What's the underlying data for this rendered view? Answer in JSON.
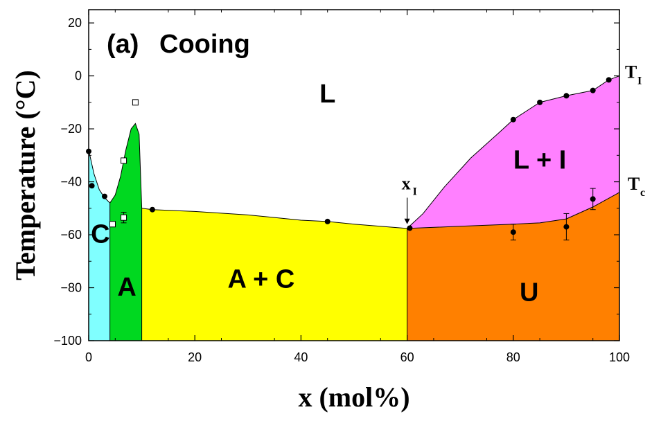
{
  "chart_data": {
    "type": "scatter",
    "panel_label": "(a)",
    "title": "Cooing",
    "title_color": "#0000e0",
    "xlabel": "x  (mol%)",
    "ylabel": "Temperature (°C)",
    "xlim": [
      0,
      100
    ],
    "ylim": [
      -100,
      25
    ],
    "x_ticks": [
      0,
      20,
      40,
      60,
      80,
      100
    ],
    "y_ticks": [
      20,
      0,
      -20,
      -40,
      -60,
      -80,
      -100
    ],
    "x_tick_labels": [
      "0",
      "20",
      "40",
      "60",
      "80",
      "100"
    ],
    "y_tick_labels": [
      "20",
      "0",
      "−20",
      "−40",
      "−60",
      "−80",
      "−100"
    ],
    "grid": false,
    "regions": [
      {
        "name": "C",
        "color": "#80ffff",
        "label_at": [
          2.2,
          -63
        ]
      },
      {
        "name": "A",
        "color": "#00d820",
        "label_at": [
          7.2,
          -83
        ]
      },
      {
        "name": "A + C",
        "color": "#ffff00",
        "label_at": [
          32.5,
          -80
        ]
      },
      {
        "name": "U",
        "color": "#ff8000",
        "label_at": [
          83,
          -85
        ]
      },
      {
        "name": "L + I",
        "color": "#ff80ff",
        "label_at": [
          85,
          -35
        ]
      },
      {
        "name": "L",
        "color": "#ffffff",
        "label_at": [
          45,
          -10
        ]
      }
    ],
    "boundaries": {
      "liquidus_C": [
        [
          0,
          -28
        ],
        [
          1,
          -37
        ],
        [
          2,
          -43
        ],
        [
          3,
          -46
        ],
        [
          4,
          -48
        ]
      ],
      "liquidus_A": [
        [
          4,
          -48
        ],
        [
          5,
          -45
        ],
        [
          6,
          -38
        ],
        [
          7,
          -28
        ],
        [
          8,
          -20
        ],
        [
          8.8,
          -18
        ],
        [
          9.5,
          -22
        ],
        [
          10,
          -50
        ]
      ],
      "eutectic_line": [
        [
          10,
          -50
        ],
        [
          12,
          -50.5
        ],
        [
          20,
          -51.2
        ],
        [
          30,
          -52.5
        ],
        [
          40,
          -54.5
        ],
        [
          45,
          -55
        ],
        [
          50,
          -56
        ],
        [
          60,
          -57.6
        ]
      ],
      "liquidus_I": [
        [
          60,
          -57.6
        ],
        [
          63,
          -52
        ],
        [
          67,
          -42
        ],
        [
          72,
          -31
        ],
        [
          77,
          -22
        ],
        [
          80,
          -16.5
        ],
        [
          85,
          -10
        ],
        [
          90,
          -7.5
        ],
        [
          95,
          -5.5
        ],
        [
          98,
          -1.5
        ],
        [
          100,
          0
        ]
      ],
      "transition_Tc": [
        [
          60,
          -57.6
        ],
        [
          70,
          -56.8
        ],
        [
          80,
          -56
        ],
        [
          85,
          -55.5
        ],
        [
          90,
          -54
        ],
        [
          95,
          -49.5
        ],
        [
          100,
          -44
        ]
      ],
      "vertical_lines": [
        4,
        10,
        60
      ]
    },
    "series": [
      {
        "marker": "filled-circle",
        "points": [
          {
            "x": 0,
            "y": -28.5
          },
          {
            "x": 0.6,
            "y": -41.5
          },
          {
            "x": 3,
            "y": -45.5
          },
          {
            "x": 12,
            "y": -50.5
          },
          {
            "x": 45,
            "y": -55
          },
          {
            "x": 60.5,
            "y": -57.5
          },
          {
            "x": 80,
            "y": -16.5
          },
          {
            "x": 85,
            "y": -10
          },
          {
            "x": 90,
            "y": -7.5
          },
          {
            "x": 95,
            "y": -5.5
          },
          {
            "x": 98,
            "y": -1.5
          },
          {
            "x": 80,
            "y": -59,
            "err": 3
          },
          {
            "x": 90,
            "y": -57,
            "err": 5
          },
          {
            "x": 95,
            "y": -46.5,
            "err": 4
          }
        ]
      },
      {
        "marker": "open-square",
        "points": [
          {
            "x": 8.8,
            "y": -10
          },
          {
            "x": 6.6,
            "y": -32
          },
          {
            "x": 4.5,
            "y": -56
          },
          {
            "x": 6.6,
            "y": -53.5,
            "err": 2
          }
        ]
      }
    ],
    "annotations": {
      "xI": {
        "main": "x",
        "sub": "I",
        "x": 60,
        "arrow_from_y": -46,
        "arrow_to_y": -56
      },
      "TI": {
        "main": "T",
        "sub": "I"
      },
      "Tc": {
        "main": "T",
        "sub": "c"
      }
    }
  }
}
